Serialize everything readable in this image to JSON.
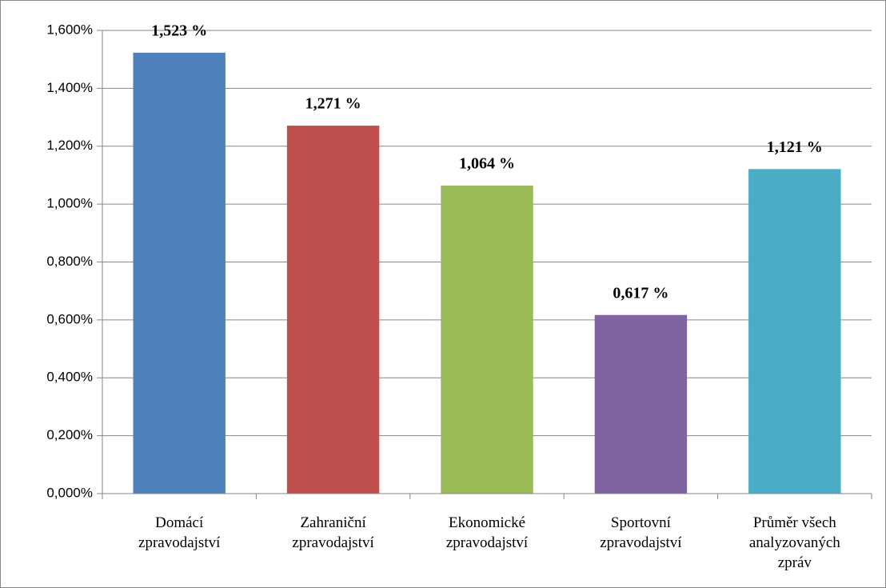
{
  "chart_data": {
    "type": "bar",
    "categories": [
      "Domácí\nzpravodajství",
      "Zahraniční\nzpravodajství",
      "Ekonomické\nzpravodajství",
      "Sportovní\nzpravodajství",
      "Průměr všech\nanalyzovaných\nzpráv"
    ],
    "values": [
      1.523,
      1.271,
      1.064,
      0.617,
      1.121
    ],
    "value_labels": [
      "1,523 %",
      "1,271 %",
      "1,064 %",
      "0,617 %",
      "1,121 %"
    ],
    "colors": [
      "#4f81bd",
      "#c0504d",
      "#9bbb59",
      "#8064a2",
      "#4bacc6"
    ],
    "ylim": [
      0,
      1.6
    ],
    "yticks": [
      {
        "value": 0,
        "label": "0,000%"
      },
      {
        "value": 0.2,
        "label": "0,200%"
      },
      {
        "value": 0.4,
        "label": "0,400%"
      },
      {
        "value": 0.6,
        "label": "0,600%"
      },
      {
        "value": 0.8,
        "label": "0,800%"
      },
      {
        "value": 1.0,
        "label": "1,000%"
      },
      {
        "value": 1.2,
        "label": "1,200%"
      },
      {
        "value": 1.4,
        "label": "1,400%"
      },
      {
        "value": 1.6,
        "label": "1,600%"
      }
    ],
    "grid": true
  }
}
